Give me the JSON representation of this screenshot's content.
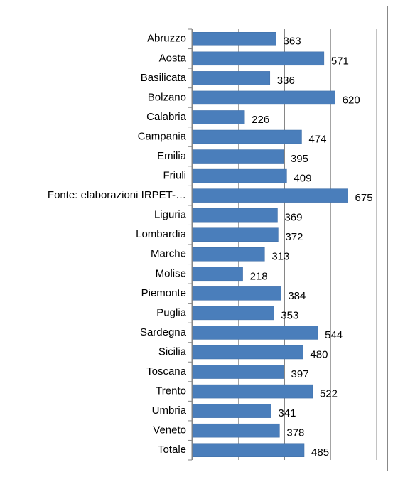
{
  "chart_data": {
    "type": "bar",
    "orientation": "horizontal",
    "categories": [
      "Abruzzo",
      "Aosta",
      "Basilicata",
      "Bolzano",
      "Calabria",
      "Campania",
      "Emilia",
      "Friuli",
      "Fonte: elaborazioni IRPET-…",
      "Liguria",
      "Lombardia",
      "Marche",
      "Molise",
      "Piemonte",
      "Puglia",
      "Sardegna",
      "Sicilia",
      "Toscana",
      "Trento",
      "Umbria",
      "Veneto",
      "Totale"
    ],
    "values": [
      363,
      571,
      336,
      620,
      226,
      474,
      395,
      409,
      675,
      369,
      372,
      313,
      218,
      384,
      353,
      544,
      480,
      397,
      522,
      341,
      378,
      485
    ],
    "color": "#4a7ebb",
    "xlim": [
      0,
      800
    ],
    "xticks": [
      0,
      200,
      400,
      600,
      800
    ],
    "grid": true
  }
}
